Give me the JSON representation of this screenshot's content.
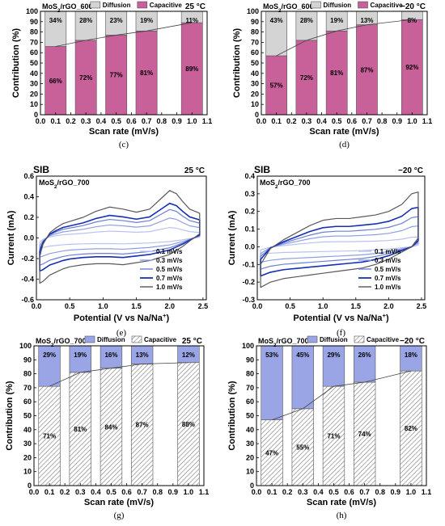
{
  "chart_data": [
    {
      "panel": "c",
      "type": "bar",
      "title": "MoS₂/rGO_600",
      "temperature": "25 °C",
      "xlabel": "Scan rate (mV/s)",
      "ylabel": "Contribution (%)",
      "xlim": [
        0.0,
        1.1
      ],
      "ylim": [
        0,
        100
      ],
      "xticks": [
        "0.0",
        "0.1",
        "0.2",
        "0.3",
        "0.4",
        "0.5",
        "0.6",
        "0.7",
        "0.8",
        "0.9",
        "1.0",
        "1.1"
      ],
      "x": [
        0.1,
        0.3,
        0.5,
        0.7,
        1.0
      ],
      "series": [
        {
          "name": "Capacitive",
          "values": [
            66,
            72,
            77,
            81,
            89
          ],
          "labels": [
            "66%",
            "72%",
            "77%",
            "81%",
            "89%"
          ]
        },
        {
          "name": "Diffusion",
          "values": [
            34,
            28,
            23,
            19,
            11
          ],
          "labels": [
            "34%",
            "28%",
            "23%",
            "19%",
            "11%"
          ]
        }
      ],
      "colors": {
        "Capacitive": "#c8609a",
        "Diffusion": "#d4d4d4"
      },
      "caption": "(c)"
    },
    {
      "panel": "d",
      "type": "bar",
      "title": "MoS₂/rGO_600",
      "temperature": "−20 °C",
      "xlabel": "Scan rate (mV/s)",
      "ylabel": "Contribution (%)",
      "xlim": [
        0.0,
        1.1
      ],
      "ylim": [
        0,
        100
      ],
      "xticks": [
        "0.0",
        "0.1",
        "0.2",
        "0.3",
        "0.4",
        "0.5",
        "0.6",
        "0.7",
        "0.8",
        "0.9",
        "1.0",
        "1.1"
      ],
      "x": [
        0.1,
        0.3,
        0.5,
        0.7,
        1.0
      ],
      "series": [
        {
          "name": "Capacitive",
          "values": [
            57,
            72,
            81,
            87,
            92
          ],
          "labels": [
            "57%",
            "72%",
            "81%",
            "87%",
            "92%"
          ]
        },
        {
          "name": "Diffusion",
          "values": [
            43,
            28,
            19,
            13,
            8
          ],
          "labels": [
            "43%",
            "28%",
            "19%",
            "13%",
            "8%"
          ]
        }
      ],
      "colors": {
        "Capacitive": "#c8609a",
        "Diffusion": "#d4d4d4"
      },
      "caption": "(d)"
    },
    {
      "panel": "e",
      "type": "line",
      "tag": "SIB",
      "title": "MoS₂/rGO_700",
      "temperature": "25 °C",
      "xlabel": "Potential (V vs Na/Na⁺)",
      "ylabel": "Current (mA)",
      "xlim": [
        0.0,
        2.55
      ],
      "ylim": [
        -0.6,
        0.6
      ],
      "xticks": [
        "0.0",
        "0.5",
        "1.0",
        "1.5",
        "2.0",
        "2.5"
      ],
      "yticks": [
        "-0.6",
        "-0.4",
        "-0.2",
        "0.0",
        "0.2",
        "0.4",
        "0.6"
      ],
      "series": [
        {
          "name": "0.1 mV/s",
          "scale": 0.22
        },
        {
          "name": "0.3 mV/s",
          "scale": 0.42
        },
        {
          "name": "0.5 mV/s",
          "scale": 0.6
        },
        {
          "name": "0.7 mV/s",
          "scale": 0.73
        },
        {
          "name": "1.0 mV/s",
          "scale": 1.0
        }
      ],
      "profile": {
        "x": [
          0.05,
          0.1,
          0.2,
          0.3,
          0.4,
          0.5,
          0.7,
          0.9,
          1.1,
          1.3,
          1.5,
          1.7,
          1.9,
          2.0,
          2.1,
          2.2,
          2.3,
          2.45
        ],
        "anodic": [
          -0.18,
          -0.06,
          0.05,
          0.1,
          0.14,
          0.16,
          0.2,
          0.26,
          0.3,
          0.28,
          0.25,
          0.28,
          0.4,
          0.46,
          0.43,
          0.35,
          0.28,
          0.24
        ],
        "cathodic": [
          -0.44,
          -0.42,
          -0.36,
          -0.33,
          -0.3,
          -0.28,
          -0.26,
          -0.25,
          -0.25,
          -0.26,
          -0.24,
          -0.22,
          -0.18,
          -0.16,
          -0.12,
          -0.08,
          -0.03,
          0.04
        ]
      },
      "colors": [
        "#b8c4ee",
        "#8e9fe0",
        "#6d7fd4",
        "#1530b5",
        "#595959"
      ],
      "caption": "(e)"
    },
    {
      "panel": "f",
      "type": "line",
      "tag": "SIB",
      "title": "MoS₂/rGO_700",
      "temperature": "−20 °C",
      "xlabel": "Potential (V vs Na/Na⁺)",
      "ylabel": "Current (mA)",
      "xlim": [
        0.0,
        2.55
      ],
      "ylim": [
        -0.3,
        0.4
      ],
      "xticks": [
        "0.0",
        "0.5",
        "1.0",
        "1.5",
        "2.0",
        "2.5"
      ],
      "yticks": [
        "-0.3",
        "-0.2",
        "-0.1",
        "0.0",
        "0.1",
        "0.2",
        "0.3",
        "0.4"
      ],
      "series": [
        {
          "name": "0.1 mV/s",
          "scale": 0.18
        },
        {
          "name": "0.3 mV/s",
          "scale": 0.38
        },
        {
          "name": "0.5 mV/s",
          "scale": 0.55
        },
        {
          "name": "0.7 mV/s",
          "scale": 0.72
        },
        {
          "name": "1.0 mV/s",
          "scale": 1.0
        }
      ],
      "profile": {
        "x": [
          0.05,
          0.2,
          0.4,
          0.6,
          0.8,
          1.0,
          1.2,
          1.4,
          1.6,
          1.8,
          2.0,
          2.2,
          2.35,
          2.45
        ],
        "anodic": [
          -0.1,
          -0.01,
          0.04,
          0.08,
          0.12,
          0.15,
          0.16,
          0.16,
          0.17,
          0.18,
          0.2,
          0.24,
          0.3,
          0.31
        ],
        "cathodic": [
          -0.23,
          -0.2,
          -0.18,
          -0.17,
          -0.16,
          -0.15,
          -0.14,
          -0.13,
          -0.12,
          -0.1,
          -0.07,
          -0.03,
          0.0,
          0.05
        ]
      },
      "colors": [
        "#b8c4ee",
        "#8e9fe0",
        "#6d7fd4",
        "#1530b5",
        "#595959"
      ],
      "caption": "(f)"
    },
    {
      "panel": "g",
      "type": "bar",
      "title": "MoS₂/rGO_700",
      "temperature": "25 °C",
      "xlabel": "Scan rate (mV/s)",
      "ylabel": "Contribution (%)",
      "xlim": [
        0.0,
        1.1
      ],
      "ylim": [
        0,
        100
      ],
      "xticks": [
        "0.0",
        "0.1",
        "0.2",
        "0.3",
        "0.4",
        "0.5",
        "0.6",
        "0.7",
        "0.8",
        "0.9",
        "1.0",
        "1.1"
      ],
      "x": [
        0.1,
        0.3,
        0.5,
        0.7,
        1.0
      ],
      "series": [
        {
          "name": "Capacitive",
          "values": [
            71,
            81,
            84,
            87,
            88
          ],
          "labels": [
            "71%",
            "81%",
            "84%",
            "87%",
            "88%"
          ]
        },
        {
          "name": "Diffusion",
          "values": [
            29,
            19,
            16,
            13,
            12
          ],
          "labels": [
            "29%",
            "19%",
            "16%",
            "13%",
            "12%"
          ]
        }
      ],
      "colors": {
        "Capacitive": "hatch",
        "Diffusion": "#9aa5e6"
      },
      "caption": "(g)"
    },
    {
      "panel": "h",
      "type": "bar",
      "title": "MoS₂/rGO_700",
      "temperature": "−20 °C",
      "xlabel": "Scan rate (mV/s)",
      "ylabel": "Contribution (%)",
      "xlim": [
        0.0,
        1.1
      ],
      "ylim": [
        0,
        100
      ],
      "xticks": [
        "0.0",
        "0.1",
        "0.2",
        "0.3",
        "0.4",
        "0.5",
        "0.6",
        "0.7",
        "0.8",
        "0.9",
        "1.0",
        "1.1"
      ],
      "x": [
        0.1,
        0.3,
        0.5,
        0.7,
        1.0
      ],
      "series": [
        {
          "name": "Capacitive",
          "values": [
            47,
            55,
            71,
            74,
            82
          ],
          "labels": [
            "47%",
            "55%",
            "71%",
            "74%",
            "82%"
          ]
        },
        {
          "name": "Diffusion",
          "values": [
            53,
            45,
            29,
            26,
            18
          ],
          "labels": [
            "53%",
            "45%",
            "29%",
            "26%",
            "18%"
          ]
        }
      ],
      "colors": {
        "Capacitive": "hatch",
        "Diffusion": "#9aa5e6"
      },
      "caption": "(h)"
    }
  ]
}
